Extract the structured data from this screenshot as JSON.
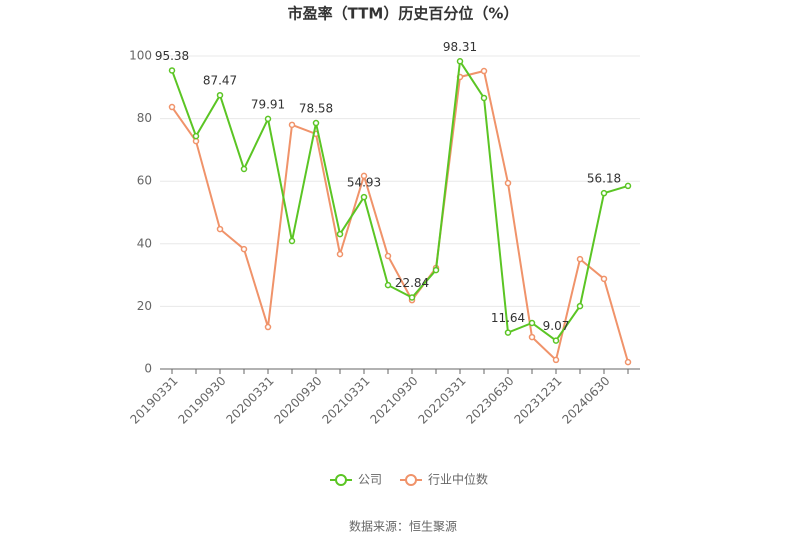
{
  "chart_data": {
    "type": "line",
    "title": "市盈率（TTM）历史百分位（%）",
    "categories": [
      "20190331",
      null,
      "20190930",
      null,
      "20200331",
      null,
      "20200930",
      null,
      "20210331",
      null,
      "20210930",
      null,
      "20220331",
      null,
      "20230630",
      null,
      "20231231",
      null,
      "20240630",
      null
    ],
    "series": [
      {
        "name": "公司",
        "color": "#5bc524",
        "values": [
          95.38,
          74.4,
          87.47,
          63.9,
          79.91,
          40.9,
          78.58,
          43.1,
          54.93,
          26.8,
          22.84,
          31.6,
          98.31,
          86.6,
          11.64,
          14.7,
          9.07,
          20.1,
          56.18,
          58.5
        ]
      },
      {
        "name": "行业中位数",
        "color": "#f0936a",
        "values": [
          83.7,
          72.8,
          44.7,
          38.3,
          13.4,
          78.0,
          75.1,
          36.7,
          61.7,
          36.1,
          22.0,
          32.3,
          93.3,
          95.2,
          59.4,
          10.2,
          2.9,
          35.1,
          28.8,
          2.2
        ]
      }
    ],
    "ylim": [
      0,
      100
    ],
    "yticks": [
      0,
      20,
      40,
      60,
      80,
      100
    ],
    "grid": true,
    "source": "数据来源：恒生聚源"
  }
}
